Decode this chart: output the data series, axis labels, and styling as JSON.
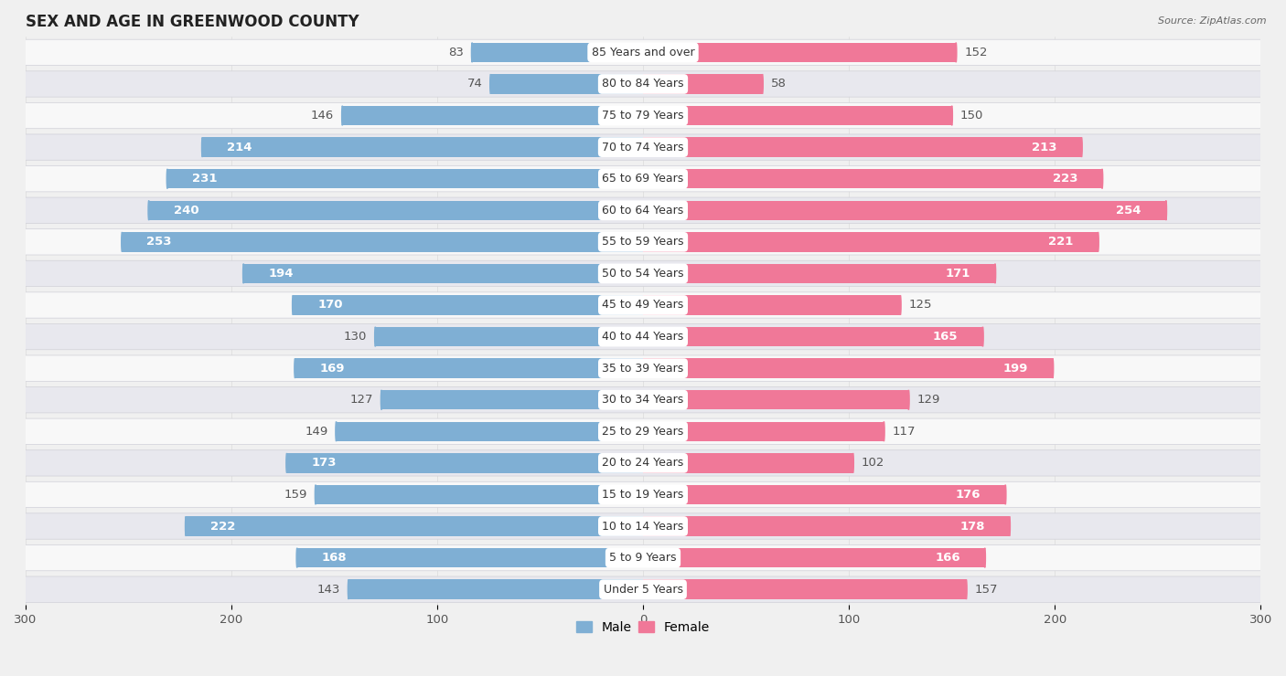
{
  "title": "SEX AND AGE IN GREENWOOD COUNTY",
  "source": "Source: ZipAtlas.com",
  "categories": [
    "85 Years and over",
    "80 to 84 Years",
    "75 to 79 Years",
    "70 to 74 Years",
    "65 to 69 Years",
    "60 to 64 Years",
    "55 to 59 Years",
    "50 to 54 Years",
    "45 to 49 Years",
    "40 to 44 Years",
    "35 to 39 Years",
    "30 to 34 Years",
    "25 to 29 Years",
    "20 to 24 Years",
    "15 to 19 Years",
    "10 to 14 Years",
    "5 to 9 Years",
    "Under 5 Years"
  ],
  "male": [
    83,
    74,
    146,
    214,
    231,
    240,
    253,
    194,
    170,
    130,
    169,
    127,
    149,
    173,
    159,
    222,
    168,
    143
  ],
  "female": [
    152,
    58,
    150,
    213,
    223,
    254,
    221,
    171,
    125,
    165,
    199,
    129,
    117,
    102,
    176,
    178,
    166,
    157
  ],
  "male_color": "#7fafd4",
  "female_color": "#f07898",
  "male_label_color_outside": "#555555",
  "male_label_color_inside": "#ffffff",
  "female_label_color_outside": "#555555",
  "female_label_color_inside": "#ffffff",
  "background_color": "#f0f0f0",
  "row_color_light": "#f8f8f8",
  "row_color_dark": "#e8e8ee",
  "row_border_color": "#d0d0d8",
  "xlim": 300,
  "title_fontsize": 12,
  "label_fontsize": 9.5,
  "tick_fontsize": 9.5,
  "category_fontsize": 9,
  "inside_threshold_male": 160,
  "inside_threshold_female": 160
}
